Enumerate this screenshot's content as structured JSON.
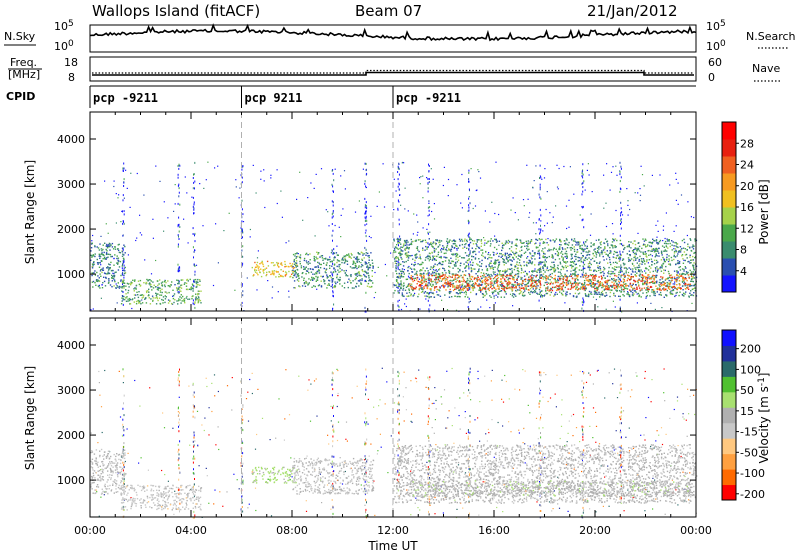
{
  "header": {
    "title": "Wallops Island (fitACF)",
    "beam": "Beam 07",
    "date": "21/Jan/2012"
  },
  "strip_nsky": {
    "left_label": "N.Sky",
    "right_label": "N.Search",
    "ticks": [
      "10^5",
      "10^0"
    ]
  },
  "strip_freq": {
    "left_label_top": "Freq.",
    "left_label_bottom": "[MHz]",
    "right_label": "Nave",
    "left_ticks": [
      "18",
      "8"
    ],
    "right_ticks": [
      "60",
      "0"
    ]
  },
  "strip_cpid": {
    "label": "CPID",
    "segments": [
      {
        "start_hour": 0.0,
        "text": "pcp -9211"
      },
      {
        "start_hour": 6.0,
        "text": "pcp 9211"
      },
      {
        "start_hour": 12.0,
        "text": "pcp -9211"
      }
    ]
  },
  "colors": {
    "power_scale": [
      "#1414ff",
      "#2a4fb0",
      "#3a8c6e",
      "#4aa84a",
      "#a6d24a",
      "#f0c020",
      "#f79a20",
      "#f06020",
      "#e82010",
      "#ff0000"
    ],
    "velocity_scale": [
      "#ff0000",
      "#ff6a00",
      "#ffa040",
      "#ffc880",
      "#c8c8c8",
      "#b0b0b0",
      "#a8e070",
      "#50c030",
      "#2a6a6a",
      "#20309a",
      "#1010ff"
    ]
  },
  "chart_data": [
    {
      "type": "heatmap",
      "ylabel": "Slant Range [km]",
      "xlabel": "",
      "x_ticks": [
        "00:00",
        "04:00",
        "08:00",
        "12:00",
        "16:00",
        "20:00",
        "00:00"
      ],
      "x_range_hours": [
        0,
        24
      ],
      "y_ticks": [
        1000,
        2000,
        3000,
        4000
      ],
      "ylim": [
        180,
        4600
      ],
      "colorbar": {
        "label": "Power [dB]",
        "ticks": [
          4,
          8,
          12,
          16,
          20,
          24,
          28
        ],
        "range": [
          0,
          32
        ]
      },
      "echo_regions": [
        {
          "start_hour": 0.0,
          "end_hour": 1.4,
          "range_min_km": 700,
          "range_max_km": 1700,
          "level_db": 8
        },
        {
          "start_hour": 1.2,
          "end_hour": 4.4,
          "range_min_km": 350,
          "range_max_km": 900,
          "level_db": 11
        },
        {
          "start_hour": 6.4,
          "end_hour": 8.2,
          "range_min_km": 950,
          "range_max_km": 1300,
          "level_db": 18
        },
        {
          "start_hour": 8.0,
          "end_hour": 11.2,
          "range_min_km": 700,
          "range_max_km": 1500,
          "level_db": 9
        },
        {
          "start_hour": 12.0,
          "end_hour": 24.0,
          "range_min_km": 500,
          "range_max_km": 1800,
          "level_db": 9
        },
        {
          "start_hour": 12.6,
          "end_hour": 23.8,
          "range_min_km": 650,
          "range_max_km": 1000,
          "level_db": 24
        }
      ]
    },
    {
      "type": "heatmap",
      "ylabel": "Slant Range [km]",
      "xlabel": "Time UT",
      "x_ticks": [
        "00:00",
        "04:00",
        "08:00",
        "12:00",
        "16:00",
        "20:00",
        "00:00"
      ],
      "x_range_hours": [
        0,
        24
      ],
      "y_ticks": [
        1000,
        2000,
        3000,
        4000
      ],
      "ylim": [
        180,
        4600
      ],
      "colorbar": {
        "label": "Velocity [m s^-1]",
        "ticks": [
          200,
          100,
          50,
          15,
          -15,
          -50,
          -100,
          -200
        ],
        "range": [
          -250,
          250
        ]
      },
      "echo_regions": [
        {
          "start_hour": 0.0,
          "end_hour": 1.4,
          "range_min_km": 700,
          "range_max_km": 1700,
          "level_ms": -20
        },
        {
          "start_hour": 1.2,
          "end_hour": 4.4,
          "range_min_km": 350,
          "range_max_km": 900,
          "level_ms": -40
        },
        {
          "start_hour": 6.4,
          "end_hour": 8.2,
          "range_min_km": 950,
          "range_max_km": 1300,
          "level_ms": 40
        },
        {
          "start_hour": 8.0,
          "end_hour": 11.2,
          "range_min_km": 700,
          "range_max_km": 1500,
          "level_ms": -30
        },
        {
          "start_hour": 12.0,
          "end_hour": 24.0,
          "range_min_km": 500,
          "range_max_km": 1800,
          "level_ms": -15
        },
        {
          "start_hour": 12.6,
          "end_hour": 23.8,
          "range_min_km": 650,
          "range_max_km": 1000,
          "level_ms": 0
        }
      ]
    }
  ]
}
